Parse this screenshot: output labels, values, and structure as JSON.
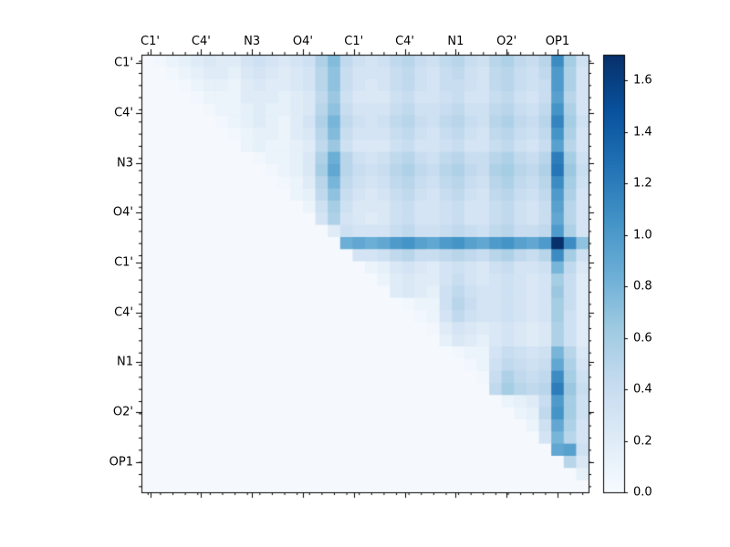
{
  "figure": {
    "background": "#ffffff",
    "axis_color": "#000000"
  },
  "chart_data": {
    "type": "heatmap",
    "title": "",
    "description": "Upper-triangular pairwise matrix heatmap (Blues colormap) with matching atom-name tick labels on top and left axes and a vertical colorbar on the right",
    "x_tick_labels": [
      "C1'",
      "C4'",
      "N3",
      "O4'",
      "C1'",
      "C4'",
      "N1",
      "O2'",
      "OP1"
    ],
    "y_tick_labels": [
      "C1'",
      "C4'",
      "N3",
      "O4'",
      "C1'",
      "C4'",
      "N1",
      "O2'",
      "OP1"
    ],
    "grid_size": 36,
    "cells_per_label": 4,
    "colormap": "Blues",
    "colormap_stops": [
      "#f7fbff",
      "#deebf7",
      "#c6dbef",
      "#9ecae1",
      "#6baed6",
      "#4292c6",
      "#2171b5",
      "#08519c",
      "#08306b"
    ],
    "vmin": 0.0,
    "vmax": 1.7,
    "colorbar_tick_values": [
      0.0,
      0.2,
      0.4,
      0.6,
      0.8,
      1.0,
      1.2,
      1.4,
      1.6
    ],
    "colorbar_tick_labels": [
      "0.0",
      "0.2",
      "0.4",
      "0.6",
      "0.8",
      "1.0",
      "1.2",
      "1.4",
      "1.6"
    ],
    "legend": "none",
    "grid": false,
    "values": [
      [
        0.02,
        0.05,
        0.1,
        0.15,
        0.2,
        0.25,
        0.2,
        0.2,
        0.3,
        0.35,
        0.3,
        0.25,
        0.3,
        0.35,
        0.55,
        0.75,
        0.45,
        0.35,
        0.3,
        0.35,
        0.45,
        0.5,
        0.4,
        0.35,
        0.45,
        0.5,
        0.4,
        0.35,
        0.5,
        0.55,
        0.45,
        0.4,
        0.5,
        1.1,
        0.6,
        0.35
      ],
      [
        0.02,
        0.02,
        0.05,
        0.1,
        0.15,
        0.2,
        0.2,
        0.15,
        0.25,
        0.3,
        0.25,
        0.2,
        0.25,
        0.3,
        0.5,
        0.7,
        0.4,
        0.3,
        0.3,
        0.3,
        0.4,
        0.45,
        0.35,
        0.3,
        0.4,
        0.45,
        0.35,
        0.3,
        0.45,
        0.5,
        0.4,
        0.35,
        0.45,
        1.0,
        0.55,
        0.3
      ],
      [
        0.02,
        0.02,
        0.02,
        0.05,
        0.1,
        0.15,
        0.15,
        0.1,
        0.2,
        0.25,
        0.2,
        0.2,
        0.25,
        0.3,
        0.5,
        0.7,
        0.4,
        0.3,
        0.25,
        0.3,
        0.4,
        0.45,
        0.35,
        0.3,
        0.4,
        0.4,
        0.35,
        0.3,
        0.45,
        0.5,
        0.4,
        0.35,
        0.4,
        1.0,
        0.55,
        0.3
      ],
      [
        0.02,
        0.02,
        0.02,
        0.02,
        0.05,
        0.1,
        0.1,
        0.1,
        0.2,
        0.2,
        0.2,
        0.15,
        0.2,
        0.25,
        0.45,
        0.65,
        0.35,
        0.25,
        0.25,
        0.25,
        0.35,
        0.4,
        0.3,
        0.3,
        0.35,
        0.4,
        0.3,
        0.3,
        0.4,
        0.45,
        0.35,
        0.3,
        0.4,
        0.95,
        0.5,
        0.3
      ],
      [
        0.02,
        0.02,
        0.02,
        0.02,
        0.02,
        0.05,
        0.1,
        0.1,
        0.15,
        0.2,
        0.15,
        0.15,
        0.2,
        0.25,
        0.5,
        0.7,
        0.4,
        0.3,
        0.3,
        0.3,
        0.4,
        0.45,
        0.35,
        0.35,
        0.4,
        0.45,
        0.35,
        0.35,
        0.45,
        0.5,
        0.4,
        0.35,
        0.45,
        1.05,
        0.55,
        0.3
      ],
      [
        0.02,
        0.02,
        0.02,
        0.02,
        0.02,
        0.02,
        0.05,
        0.1,
        0.15,
        0.2,
        0.15,
        0.1,
        0.2,
        0.3,
        0.55,
        0.8,
        0.45,
        0.35,
        0.3,
        0.35,
        0.45,
        0.5,
        0.4,
        0.35,
        0.45,
        0.5,
        0.4,
        0.35,
        0.5,
        0.55,
        0.45,
        0.4,
        0.5,
        1.15,
        0.6,
        0.35
      ],
      [
        0.02,
        0.02,
        0.02,
        0.02,
        0.02,
        0.02,
        0.02,
        0.05,
        0.1,
        0.15,
        0.15,
        0.1,
        0.2,
        0.25,
        0.5,
        0.75,
        0.4,
        0.3,
        0.3,
        0.3,
        0.4,
        0.45,
        0.35,
        0.3,
        0.4,
        0.45,
        0.35,
        0.3,
        0.45,
        0.5,
        0.4,
        0.35,
        0.45,
        1.05,
        0.55,
        0.3
      ],
      [
        0.02,
        0.02,
        0.02,
        0.02,
        0.02,
        0.02,
        0.02,
        0.02,
        0.1,
        0.15,
        0.1,
        0.1,
        0.15,
        0.2,
        0.45,
        0.65,
        0.35,
        0.25,
        0.25,
        0.25,
        0.35,
        0.4,
        0.3,
        0.3,
        0.35,
        0.4,
        0.3,
        0.3,
        0.4,
        0.45,
        0.35,
        0.3,
        0.4,
        0.95,
        0.5,
        0.3
      ],
      [
        0.02,
        0.02,
        0.02,
        0.02,
        0.02,
        0.02,
        0.02,
        0.02,
        0.02,
        0.05,
        0.1,
        0.1,
        0.15,
        0.25,
        0.55,
        0.85,
        0.5,
        0.35,
        0.3,
        0.35,
        0.45,
        0.5,
        0.4,
        0.35,
        0.45,
        0.5,
        0.4,
        0.4,
        0.5,
        0.55,
        0.45,
        0.4,
        0.5,
        1.2,
        0.6,
        0.35
      ],
      [
        0.02,
        0.02,
        0.02,
        0.02,
        0.02,
        0.02,
        0.02,
        0.02,
        0.02,
        0.02,
        0.05,
        0.1,
        0.15,
        0.25,
        0.6,
        0.9,
        0.5,
        0.4,
        0.35,
        0.4,
        0.5,
        0.55,
        0.45,
        0.4,
        0.5,
        0.55,
        0.45,
        0.4,
        0.55,
        0.6,
        0.5,
        0.45,
        0.55,
        1.25,
        0.65,
        0.4
      ],
      [
        0.02,
        0.02,
        0.02,
        0.02,
        0.02,
        0.02,
        0.02,
        0.02,
        0.02,
        0.02,
        0.02,
        0.05,
        0.1,
        0.2,
        0.5,
        0.8,
        0.45,
        0.35,
        0.3,
        0.35,
        0.45,
        0.5,
        0.4,
        0.35,
        0.45,
        0.5,
        0.4,
        0.35,
        0.5,
        0.55,
        0.45,
        0.4,
        0.5,
        1.1,
        0.6,
        0.35
      ],
      [
        0.02,
        0.02,
        0.02,
        0.02,
        0.02,
        0.02,
        0.02,
        0.02,
        0.02,
        0.02,
        0.02,
        0.02,
        0.1,
        0.15,
        0.45,
        0.7,
        0.4,
        0.3,
        0.25,
        0.3,
        0.4,
        0.45,
        0.35,
        0.3,
        0.4,
        0.45,
        0.35,
        0.3,
        0.45,
        0.5,
        0.4,
        0.35,
        0.45,
        1.0,
        0.55,
        0.3
      ],
      [
        0.02,
        0.02,
        0.02,
        0.02,
        0.02,
        0.02,
        0.02,
        0.02,
        0.02,
        0.02,
        0.02,
        0.02,
        0.02,
        0.1,
        0.35,
        0.6,
        0.35,
        0.25,
        0.25,
        0.25,
        0.35,
        0.4,
        0.3,
        0.3,
        0.35,
        0.4,
        0.3,
        0.3,
        0.4,
        0.45,
        0.35,
        0.3,
        0.4,
        0.95,
        0.5,
        0.3
      ],
      [
        0.02,
        0.02,
        0.02,
        0.02,
        0.02,
        0.02,
        0.02,
        0.02,
        0.02,
        0.02,
        0.02,
        0.02,
        0.02,
        0.02,
        0.3,
        0.55,
        0.3,
        0.25,
        0.2,
        0.25,
        0.35,
        0.4,
        0.3,
        0.3,
        0.35,
        0.4,
        0.3,
        0.3,
        0.4,
        0.45,
        0.35,
        0.3,
        0.4,
        0.9,
        0.5,
        0.3
      ],
      [
        0.02,
        0.02,
        0.02,
        0.02,
        0.02,
        0.02,
        0.02,
        0.02,
        0.02,
        0.02,
        0.02,
        0.02,
        0.02,
        0.02,
        0.02,
        0.2,
        0.35,
        0.3,
        0.3,
        0.3,
        0.4,
        0.45,
        0.35,
        0.35,
        0.4,
        0.45,
        0.4,
        0.35,
        0.45,
        0.5,
        0.4,
        0.4,
        0.45,
        1.0,
        0.55,
        0.3
      ],
      [
        0.02,
        0.02,
        0.02,
        0.02,
        0.02,
        0.02,
        0.02,
        0.02,
        0.02,
        0.02,
        0.02,
        0.02,
        0.02,
        0.02,
        0.02,
        0.02,
        0.85,
        0.9,
        0.85,
        0.9,
        1.0,
        1.05,
        0.95,
        0.9,
        1.0,
        1.05,
        0.95,
        0.9,
        1.0,
        1.05,
        0.95,
        0.9,
        1.0,
        1.7,
        1.1,
        0.7
      ],
      [
        0.02,
        0.02,
        0.02,
        0.02,
        0.02,
        0.02,
        0.02,
        0.02,
        0.02,
        0.02,
        0.02,
        0.02,
        0.02,
        0.02,
        0.02,
        0.02,
        0.02,
        0.3,
        0.3,
        0.35,
        0.45,
        0.5,
        0.4,
        0.4,
        0.45,
        0.5,
        0.45,
        0.4,
        0.5,
        0.55,
        0.45,
        0.4,
        0.5,
        1.1,
        0.6,
        0.35
      ],
      [
        0.02,
        0.02,
        0.02,
        0.02,
        0.02,
        0.02,
        0.02,
        0.02,
        0.02,
        0.02,
        0.02,
        0.02,
        0.02,
        0.02,
        0.02,
        0.02,
        0.02,
        0.02,
        0.1,
        0.15,
        0.25,
        0.3,
        0.25,
        0.2,
        0.3,
        0.35,
        0.3,
        0.25,
        0.35,
        0.4,
        0.3,
        0.3,
        0.35,
        0.8,
        0.45,
        0.25
      ],
      [
        0.02,
        0.02,
        0.02,
        0.02,
        0.02,
        0.02,
        0.02,
        0.02,
        0.02,
        0.02,
        0.02,
        0.02,
        0.02,
        0.02,
        0.02,
        0.02,
        0.02,
        0.02,
        0.02,
        0.1,
        0.2,
        0.25,
        0.2,
        0.2,
        0.3,
        0.4,
        0.3,
        0.25,
        0.3,
        0.35,
        0.3,
        0.25,
        0.3,
        0.6,
        0.4,
        0.2
      ],
      [
        0.02,
        0.02,
        0.02,
        0.02,
        0.02,
        0.02,
        0.02,
        0.02,
        0.02,
        0.02,
        0.02,
        0.02,
        0.02,
        0.02,
        0.02,
        0.02,
        0.02,
        0.02,
        0.02,
        0.02,
        0.2,
        0.25,
        0.2,
        0.15,
        0.35,
        0.45,
        0.35,
        0.3,
        0.3,
        0.35,
        0.3,
        0.25,
        0.3,
        0.65,
        0.4,
        0.2
      ],
      [
        0.02,
        0.02,
        0.02,
        0.02,
        0.02,
        0.02,
        0.02,
        0.02,
        0.02,
        0.02,
        0.02,
        0.02,
        0.02,
        0.02,
        0.02,
        0.02,
        0.02,
        0.02,
        0.02,
        0.02,
        0.02,
        0.05,
        0.1,
        0.1,
        0.35,
        0.5,
        0.4,
        0.3,
        0.3,
        0.35,
        0.3,
        0.25,
        0.3,
        0.6,
        0.4,
        0.2
      ],
      [
        0.02,
        0.02,
        0.02,
        0.02,
        0.02,
        0.02,
        0.02,
        0.02,
        0.02,
        0.02,
        0.02,
        0.02,
        0.02,
        0.02,
        0.02,
        0.02,
        0.02,
        0.02,
        0.02,
        0.02,
        0.02,
        0.02,
        0.05,
        0.1,
        0.3,
        0.45,
        0.35,
        0.3,
        0.3,
        0.35,
        0.3,
        0.25,
        0.3,
        0.6,
        0.35,
        0.2
      ],
      [
        0.02,
        0.02,
        0.02,
        0.02,
        0.02,
        0.02,
        0.02,
        0.02,
        0.02,
        0.02,
        0.02,
        0.02,
        0.02,
        0.02,
        0.02,
        0.02,
        0.02,
        0.02,
        0.02,
        0.02,
        0.02,
        0.02,
        0.02,
        0.05,
        0.2,
        0.3,
        0.25,
        0.2,
        0.25,
        0.3,
        0.25,
        0.2,
        0.25,
        0.55,
        0.35,
        0.2
      ],
      [
        0.02,
        0.02,
        0.02,
        0.02,
        0.02,
        0.02,
        0.02,
        0.02,
        0.02,
        0.02,
        0.02,
        0.02,
        0.02,
        0.02,
        0.02,
        0.02,
        0.02,
        0.02,
        0.02,
        0.02,
        0.02,
        0.02,
        0.02,
        0.02,
        0.15,
        0.25,
        0.2,
        0.15,
        0.25,
        0.3,
        0.25,
        0.2,
        0.25,
        0.55,
        0.35,
        0.2
      ],
      [
        0.02,
        0.02,
        0.02,
        0.02,
        0.02,
        0.02,
        0.02,
        0.02,
        0.02,
        0.02,
        0.02,
        0.02,
        0.02,
        0.02,
        0.02,
        0.02,
        0.02,
        0.02,
        0.02,
        0.02,
        0.02,
        0.02,
        0.02,
        0.02,
        0.02,
        0.05,
        0.1,
        0.1,
        0.3,
        0.4,
        0.35,
        0.3,
        0.35,
        0.8,
        0.5,
        0.25
      ],
      [
        0.02,
        0.02,
        0.02,
        0.02,
        0.02,
        0.02,
        0.02,
        0.02,
        0.02,
        0.02,
        0.02,
        0.02,
        0.02,
        0.02,
        0.02,
        0.02,
        0.02,
        0.02,
        0.02,
        0.02,
        0.02,
        0.02,
        0.02,
        0.02,
        0.02,
        0.02,
        0.05,
        0.1,
        0.35,
        0.45,
        0.4,
        0.35,
        0.4,
        0.9,
        0.55,
        0.3
      ],
      [
        0.02,
        0.02,
        0.02,
        0.02,
        0.02,
        0.02,
        0.02,
        0.02,
        0.02,
        0.02,
        0.02,
        0.02,
        0.02,
        0.02,
        0.02,
        0.02,
        0.02,
        0.02,
        0.02,
        0.02,
        0.02,
        0.02,
        0.02,
        0.02,
        0.02,
        0.02,
        0.02,
        0.05,
        0.4,
        0.55,
        0.45,
        0.4,
        0.45,
        1.1,
        0.6,
        0.35
      ],
      [
        0.02,
        0.02,
        0.02,
        0.02,
        0.02,
        0.02,
        0.02,
        0.02,
        0.02,
        0.02,
        0.02,
        0.02,
        0.02,
        0.02,
        0.02,
        0.02,
        0.02,
        0.02,
        0.02,
        0.02,
        0.02,
        0.02,
        0.02,
        0.02,
        0.02,
        0.02,
        0.02,
        0.02,
        0.45,
        0.6,
        0.5,
        0.45,
        0.5,
        1.2,
        0.65,
        0.4
      ],
      [
        0.02,
        0.02,
        0.02,
        0.02,
        0.02,
        0.02,
        0.02,
        0.02,
        0.02,
        0.02,
        0.02,
        0.02,
        0.02,
        0.02,
        0.02,
        0.02,
        0.02,
        0.02,
        0.02,
        0.02,
        0.02,
        0.02,
        0.02,
        0.02,
        0.02,
        0.02,
        0.02,
        0.02,
        0.02,
        0.1,
        0.15,
        0.2,
        0.4,
        1.0,
        0.6,
        0.35
      ],
      [
        0.02,
        0.02,
        0.02,
        0.02,
        0.02,
        0.02,
        0.02,
        0.02,
        0.02,
        0.02,
        0.02,
        0.02,
        0.02,
        0.02,
        0.02,
        0.02,
        0.02,
        0.02,
        0.02,
        0.02,
        0.02,
        0.02,
        0.02,
        0.02,
        0.02,
        0.02,
        0.02,
        0.02,
        0.02,
        0.02,
        0.1,
        0.15,
        0.45,
        1.05,
        0.6,
        0.35
      ],
      [
        0.02,
        0.02,
        0.02,
        0.02,
        0.02,
        0.02,
        0.02,
        0.02,
        0.02,
        0.02,
        0.02,
        0.02,
        0.02,
        0.02,
        0.02,
        0.02,
        0.02,
        0.02,
        0.02,
        0.02,
        0.02,
        0.02,
        0.02,
        0.02,
        0.02,
        0.02,
        0.02,
        0.02,
        0.02,
        0.02,
        0.02,
        0.1,
        0.35,
        0.9,
        0.55,
        0.3
      ],
      [
        0.02,
        0.02,
        0.02,
        0.02,
        0.02,
        0.02,
        0.02,
        0.02,
        0.02,
        0.02,
        0.02,
        0.02,
        0.02,
        0.02,
        0.02,
        0.02,
        0.02,
        0.02,
        0.02,
        0.02,
        0.02,
        0.02,
        0.02,
        0.02,
        0.02,
        0.02,
        0.02,
        0.02,
        0.02,
        0.02,
        0.02,
        0.02,
        0.3,
        0.8,
        0.5,
        0.3
      ],
      [
        0.02,
        0.02,
        0.02,
        0.02,
        0.02,
        0.02,
        0.02,
        0.02,
        0.02,
        0.02,
        0.02,
        0.02,
        0.02,
        0.02,
        0.02,
        0.02,
        0.02,
        0.02,
        0.02,
        0.02,
        0.02,
        0.02,
        0.02,
        0.02,
        0.02,
        0.02,
        0.02,
        0.02,
        0.02,
        0.02,
        0.02,
        0.02,
        0.02,
        0.9,
        0.95,
        0.35
      ],
      [
        0.02,
        0.02,
        0.02,
        0.02,
        0.02,
        0.02,
        0.02,
        0.02,
        0.02,
        0.02,
        0.02,
        0.02,
        0.02,
        0.02,
        0.02,
        0.02,
        0.02,
        0.02,
        0.02,
        0.02,
        0.02,
        0.02,
        0.02,
        0.02,
        0.02,
        0.02,
        0.02,
        0.02,
        0.02,
        0.02,
        0.02,
        0.02,
        0.02,
        0.02,
        0.5,
        0.25
      ],
      [
        0.02,
        0.02,
        0.02,
        0.02,
        0.02,
        0.02,
        0.02,
        0.02,
        0.02,
        0.02,
        0.02,
        0.02,
        0.02,
        0.02,
        0.02,
        0.02,
        0.02,
        0.02,
        0.02,
        0.02,
        0.02,
        0.02,
        0.02,
        0.02,
        0.02,
        0.02,
        0.02,
        0.02,
        0.02,
        0.02,
        0.02,
        0.02,
        0.02,
        0.02,
        0.02,
        0.15
      ],
      [
        0.02,
        0.02,
        0.02,
        0.02,
        0.02,
        0.02,
        0.02,
        0.02,
        0.02,
        0.02,
        0.02,
        0.02,
        0.02,
        0.02,
        0.02,
        0.02,
        0.02,
        0.02,
        0.02,
        0.02,
        0.02,
        0.02,
        0.02,
        0.02,
        0.02,
        0.02,
        0.02,
        0.02,
        0.02,
        0.02,
        0.02,
        0.02,
        0.02,
        0.02,
        0.02,
        0.02
      ]
    ]
  }
}
